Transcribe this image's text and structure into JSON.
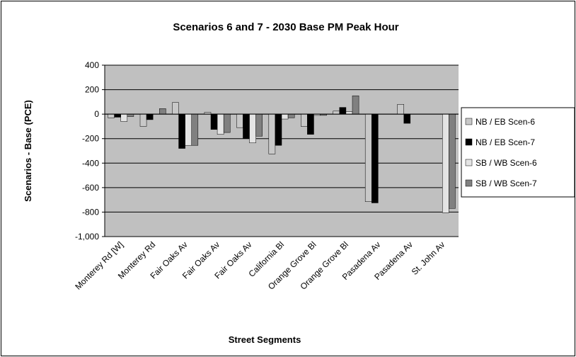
{
  "chart_data": {
    "type": "bar",
    "title": "Scenarios 6 and 7 - 2030 Base PM Peak Hour",
    "x_label": "Street Segments",
    "y_label": "Scenarios - Base (PCE)",
    "categories": [
      "Monterey Rd [W]",
      "Monterey Rd",
      "Fair Oaks Av",
      "Fair Oaks Av",
      "Fair Oaks Av",
      "California Bl",
      "Orange Grove Bl",
      "Orange Grove Bl",
      "Pasadena Av",
      "Pasadena Av",
      "St. John Av"
    ],
    "series": [
      {
        "name": "NB / EB Scen-6",
        "color": "#c8c8c8",
        "values": [
          -30,
          -100,
          95,
          15,
          -110,
          -325,
          -100,
          25,
          -715,
          80,
          0
        ]
      },
      {
        "name": "NB / EB Scen-7",
        "color": "#000000",
        "values": [
          -25,
          -45,
          -280,
          -125,
          -200,
          -255,
          -165,
          55,
          -725,
          -75,
          0
        ]
      },
      {
        "name": "SB / WB Scen-6",
        "color": "#e4e4e4",
        "values": [
          -60,
          0,
          -255,
          -165,
          -235,
          -40,
          -10,
          20,
          0,
          0,
          -805
        ]
      },
      {
        "name": "SB / WB Scen-7",
        "color": "#808080",
        "values": [
          -20,
          45,
          -255,
          -150,
          -180,
          -30,
          -10,
          150,
          0,
          0,
          -770
        ]
      }
    ],
    "ylim": [
      -1000,
      400
    ],
    "yticks": [
      {
        "value": -1000,
        "label": "-1,000"
      },
      -800,
      -600,
      -400,
      -200,
      0,
      200,
      400
    ],
    "grid": true,
    "legend": "right"
  }
}
